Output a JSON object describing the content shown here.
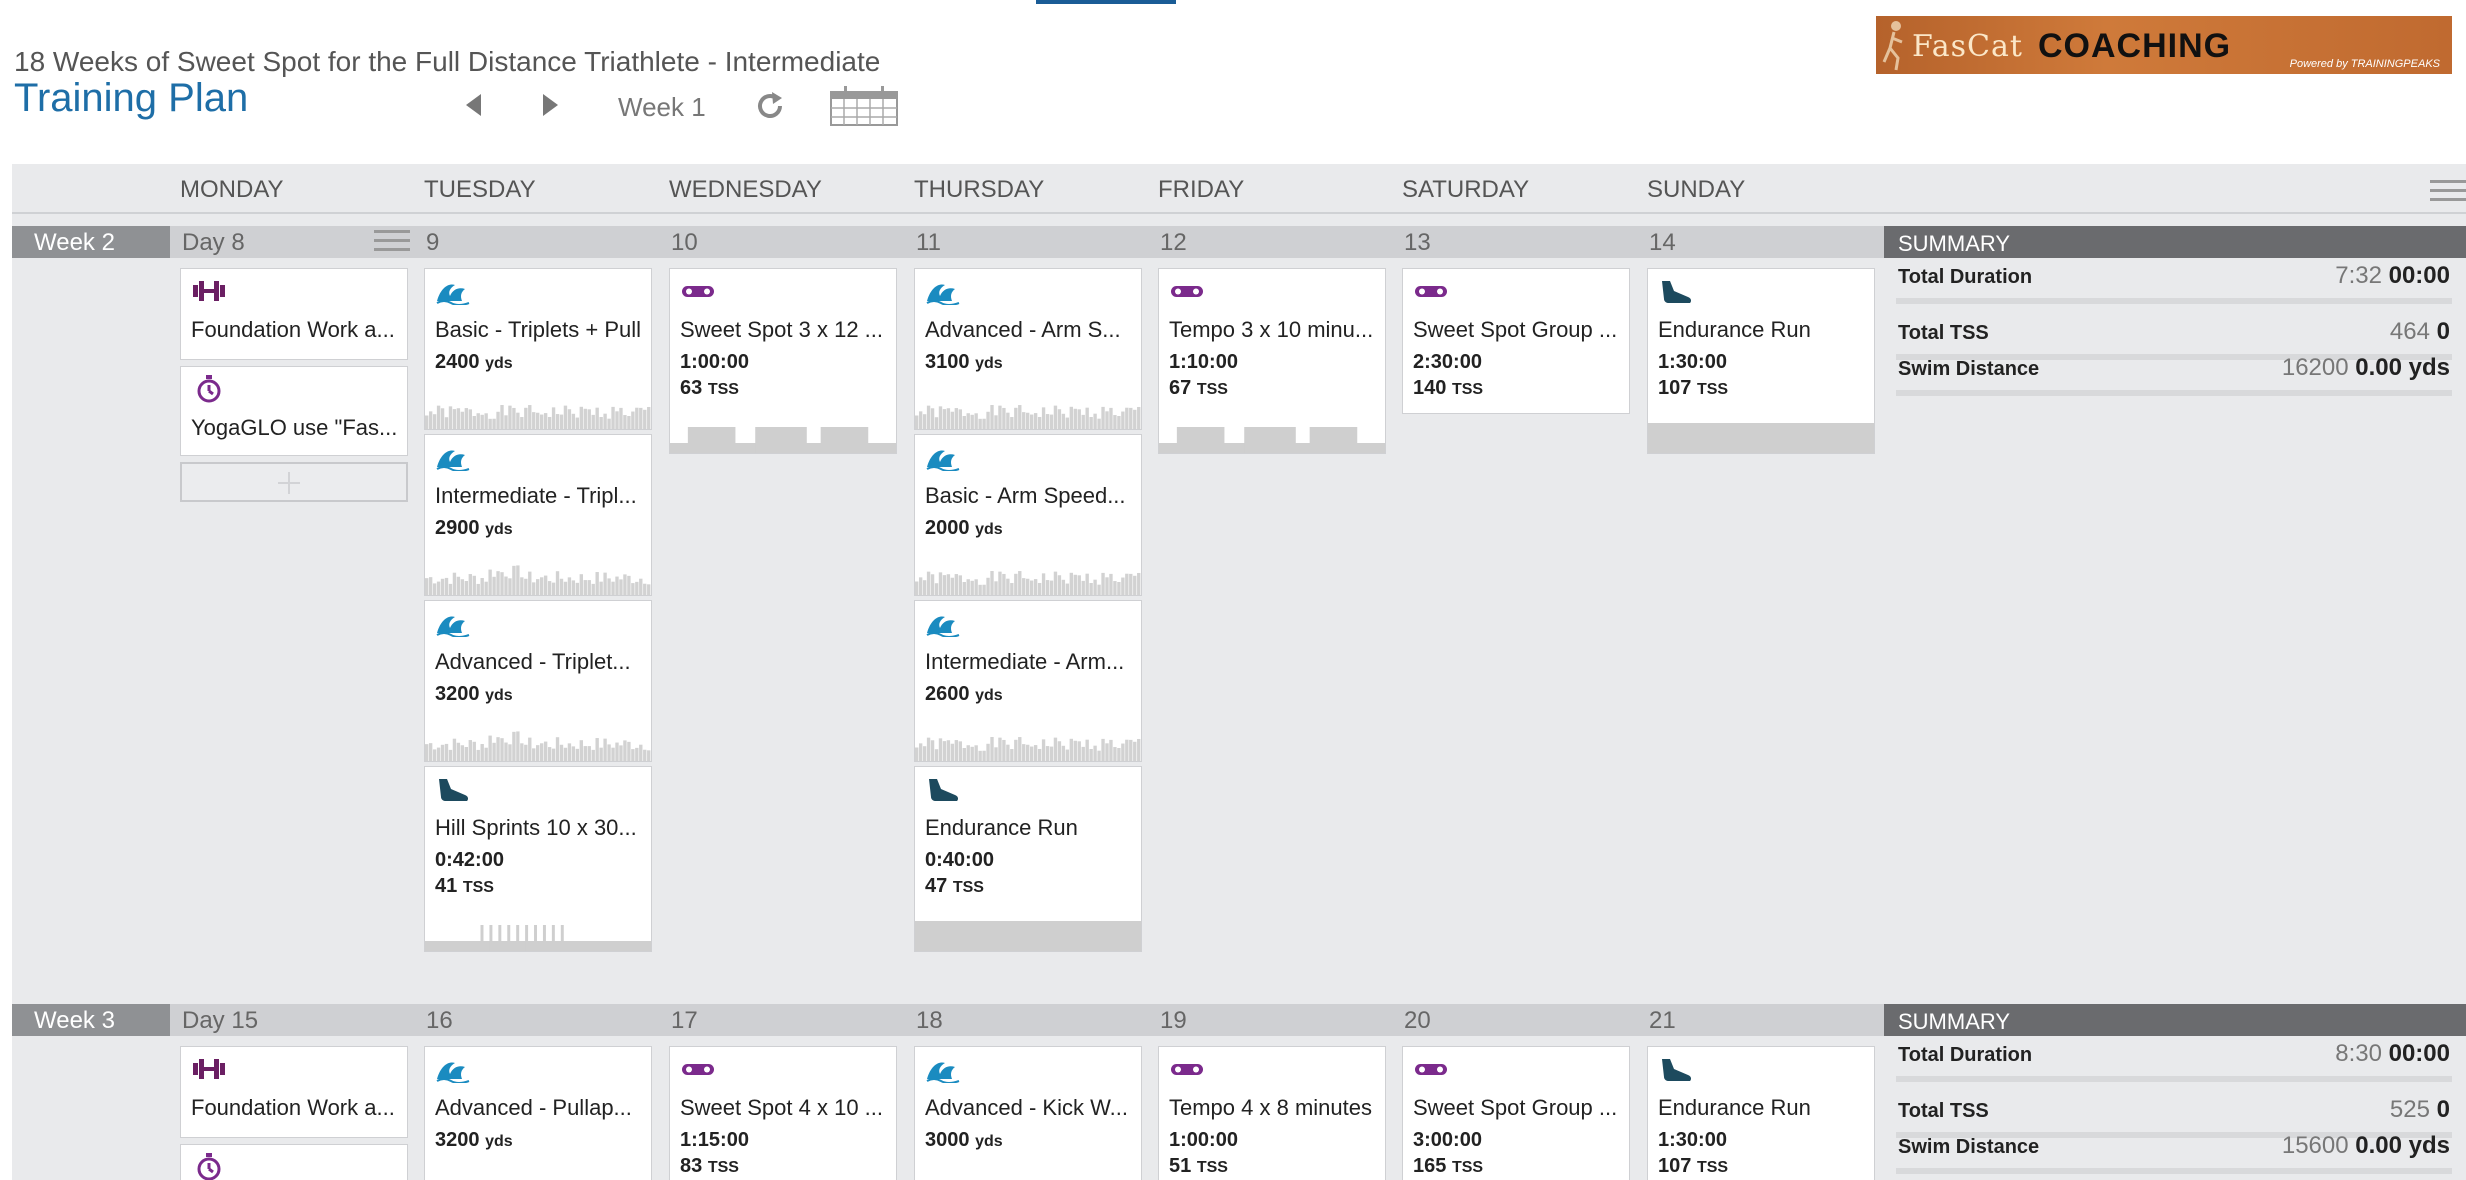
{
  "header": {
    "subtitle": "18 Weeks of Sweet Spot for the Full Distance Triathlete - Intermediate",
    "title": "Training Plan",
    "week_label": "Week 1",
    "logo_left": "FasCat",
    "logo_right": "COACHING",
    "logo_powered": "Powered by TRAININGPEAKS"
  },
  "days": [
    "MONDAY",
    "TUESDAY",
    "WEDNESDAY",
    "THURSDAY",
    "FRIDAY",
    "SATURDAY",
    "SUNDAY"
  ],
  "colors": {
    "swim": "#1a8bc0",
    "bike": "#7b2a8c",
    "run": "#1d4a5e",
    "strength": "#6b1f63",
    "summary": "#6a6b6e",
    "title": "#1e6ea7"
  },
  "weeks": [
    {
      "label": "Week 2",
      "day_labels": [
        "Day 8",
        "9",
        "10",
        "11",
        "12",
        "13",
        "14"
      ],
      "summary": {
        "heading": "SUMMARY",
        "duration_label": "Total Duration",
        "duration_prev": "7:32",
        "duration_cur": "00:00",
        "tss_label": "Total TSS",
        "tss_prev": "464",
        "tss_cur": "0",
        "swim_label": "Swim Distance",
        "swim_prev": "16200",
        "swim_cur": "0.00 yds"
      },
      "workouts": {
        "mon": [
          {
            "icon": "strength-icon",
            "title": "Foundation Work a..."
          },
          {
            "icon": "stopwatch-icon",
            "title": "YogaGLO use \"Fas..."
          }
        ],
        "tue": [
          {
            "icon": "swim-icon",
            "title": "Basic - Triplets + Pull",
            "l1": "2400",
            "l1u": "yds"
          },
          {
            "icon": "swim-icon",
            "title": "Intermediate - Tripl...",
            "l1": "2900",
            "l1u": "yds"
          },
          {
            "icon": "swim-icon",
            "title": "Advanced - Triplet...",
            "l1": "3200",
            "l1u": "yds"
          },
          {
            "icon": "run-shoe-icon",
            "title": "Hill Sprints 10 x 30...",
            "l1": "0:42:00",
            "l2": "41",
            "l2u": "TSS"
          }
        ],
        "wed": [
          {
            "icon": "bike-icon",
            "title": "Sweet Spot 3 x 12 ...",
            "l1": "1:00:00",
            "l2": "63",
            "l2u": "TSS"
          }
        ],
        "thu": [
          {
            "icon": "swim-icon",
            "title": "Advanced - Arm S...",
            "l1": "3100",
            "l1u": "yds"
          },
          {
            "icon": "swim-icon",
            "title": "Basic - Arm Speed...",
            "l1": "2000",
            "l1u": "yds"
          },
          {
            "icon": "swim-icon",
            "title": "Intermediate - Arm...",
            "l1": "2600",
            "l1u": "yds"
          },
          {
            "icon": "run-shoe-icon",
            "title": "Endurance Run",
            "l1": "0:40:00",
            "l2": "47",
            "l2u": "TSS"
          }
        ],
        "fri": [
          {
            "icon": "bike-icon",
            "title": "Tempo 3 x 10 minu...",
            "l1": "1:10:00",
            "l2": "67",
            "l2u": "TSS"
          }
        ],
        "sat": [
          {
            "icon": "bike-icon",
            "title": "Sweet Spot Group ...",
            "l1": "2:30:00",
            "l2": "140",
            "l2u": "TSS"
          }
        ],
        "sun": [
          {
            "icon": "run-shoe-icon",
            "title": "Endurance Run",
            "l1": "1:30:00",
            "l2": "107",
            "l2u": "TSS"
          }
        ]
      }
    },
    {
      "label": "Week 3",
      "day_labels": [
        "Day 15",
        "16",
        "17",
        "18",
        "19",
        "20",
        "21"
      ],
      "summary": {
        "heading": "SUMMARY",
        "duration_label": "Total Duration",
        "duration_prev": "8:30",
        "duration_cur": "00:00",
        "tss_label": "Total TSS",
        "tss_prev": "525",
        "tss_cur": "0",
        "swim_label": "Swim Distance",
        "swim_prev": "15600",
        "swim_cur": "0.00 yds"
      },
      "workouts": {
        "mon": [
          {
            "icon": "strength-icon",
            "title": "Foundation Work a..."
          }
        ],
        "tue": [
          {
            "icon": "swim-icon",
            "title": "Advanced - Pullap...",
            "l1": "3200",
            "l1u": "yds"
          }
        ],
        "wed": [
          {
            "icon": "bike-icon",
            "title": "Sweet Spot 4 x 10 ...",
            "l1": "1:15:00",
            "l2": "83",
            "l2u": "TSS"
          }
        ],
        "thu": [
          {
            "icon": "swim-icon",
            "title": "Advanced - Kick W...",
            "l1": "3000",
            "l1u": "yds"
          }
        ],
        "fri": [
          {
            "icon": "bike-icon",
            "title": "Tempo 4 x 8 minutes",
            "l1": "1:00:00",
            "l2": "51",
            "l2u": "TSS"
          }
        ],
        "sat": [
          {
            "icon": "bike-icon",
            "title": "Sweet Spot Group ...",
            "l1": "3:00:00",
            "l2": "165",
            "l2u": "TSS"
          }
        ],
        "sun": [
          {
            "icon": "run-shoe-icon",
            "title": "Endurance Run",
            "l1": "1:30:00",
            "l2": "107",
            "l2u": "TSS"
          }
        ]
      }
    }
  ]
}
